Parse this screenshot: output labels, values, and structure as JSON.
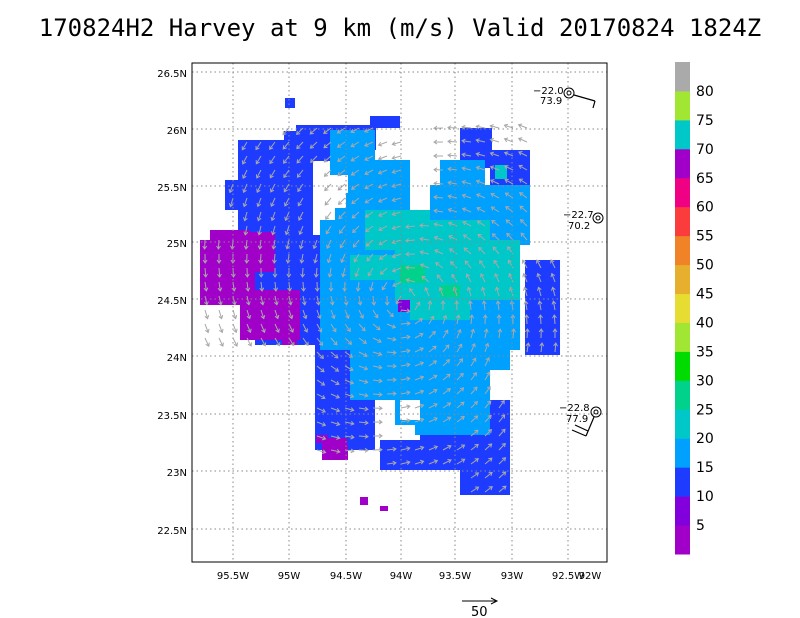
{
  "title": "170824H2 Harvey at 9 km (m/s) Valid 20170824 1824Z",
  "map": {
    "lon_ticks": [
      "95.5W",
      "95W",
      "94.5W",
      "94W",
      "93.5W",
      "93W",
      "92.5W",
      "92W"
    ],
    "lat_ticks": [
      "26.5N",
      "26N",
      "25.5N",
      "25N",
      "24.5N",
      "24N",
      "23.5N",
      "23N",
      "22.5N"
    ],
    "lon_range": [
      -95.95,
      -91.7
    ],
    "lat_range": [
      22.25,
      26.7
    ]
  },
  "colorbar": {
    "labels": [
      "5",
      "10",
      "15",
      "20",
      "25",
      "30",
      "35",
      "40",
      "45",
      "50",
      "55",
      "60",
      "65",
      "70",
      "75",
      "80"
    ],
    "colors": [
      "#a000c8",
      "#8200dc",
      "#1e3cff",
      "#00a0ff",
      "#00c8c8",
      "#00d28c",
      "#00dc00",
      "#a0e632",
      "#e6dc32",
      "#e6af2d",
      "#f08228",
      "#fa3c3c",
      "#f00082",
      "#a000c8",
      "#00c8c8",
      "#a0e632",
      "#aaaaaa"
    ]
  },
  "observations": [
    {
      "line1": "−22.0",
      "line2": "73.9"
    },
    {
      "line1": "−22.7",
      "line2": "70.2"
    },
    {
      "line1": "−22.8",
      "line2": "77.9"
    }
  ],
  "reference_vector": {
    "label": "50"
  },
  "chart_data": {
    "type": "heatmap",
    "title": "170824H2 Harvey at 9 km (m/s) Valid 20170824 1824Z",
    "x_ticks": [
      "95.5W",
      "95W",
      "94.5W",
      "94W",
      "93.5W",
      "93W",
      "92.5W",
      "92W"
    ],
    "y_ticks": [
      "26.5N",
      "26N",
      "25.5N",
      "25N",
      "24.5N",
      "24N",
      "23.5N",
      "23N",
      "22.5N"
    ],
    "colorbar_levels": [
      5,
      10,
      15,
      20,
      25,
      30,
      35,
      40,
      45,
      50,
      55,
      60,
      65,
      70,
      75,
      80
    ],
    "max_wind_region": "about 20–25 m/s near the center (~24.7N, 93.5W)",
    "grid": true
  }
}
